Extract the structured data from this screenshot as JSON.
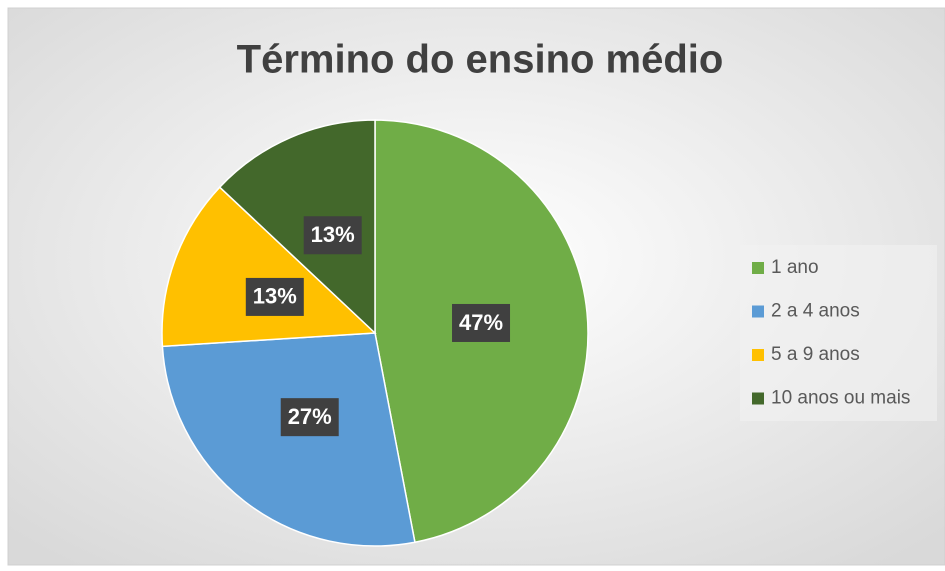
{
  "chart_data": {
    "type": "pie",
    "title": "Término do ensino médio",
    "categories": [
      "1 ano",
      "2 a 4 anos",
      "5 a 9 anos",
      "10 anos ou mais"
    ],
    "values": [
      47,
      27,
      13,
      13
    ],
    "value_labels": [
      "47%",
      "27%",
      "13%",
      "13%"
    ],
    "colors": [
      "#70ad47",
      "#5b9bd5",
      "#ffc000",
      "#43682b"
    ],
    "legend": "right"
  }
}
